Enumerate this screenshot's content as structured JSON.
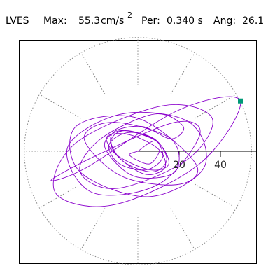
{
  "chart_data": {
    "type": "scatter",
    "plot_style": "polar particle-motion trace (continuous line)",
    "header": {
      "station": "LVES",
      "max_label": "Max:",
      "max_value": "55.3",
      "max_unit": "cm/s",
      "max_unit_exp": "2",
      "per_label": "Per:",
      "per_value": "0.340 s",
      "ang_label": "Ang:",
      "ang_value": "26.1"
    },
    "radial_axis": {
      "range": [
        0,
        55
      ],
      "tick_labels": [
        "20",
        "40"
      ],
      "ring_radius": 55,
      "ring_style": "dotted",
      "spokes_deg": [
        0,
        30,
        60,
        90,
        120,
        150,
        180,
        210,
        240,
        270,
        300,
        330
      ]
    },
    "peak": {
      "magnitude": 55.3,
      "angle_deg": 26.1,
      "marker_color": "#009977"
    },
    "colors": {
      "trace": "#8a00cc",
      "grid": "#888888",
      "axis": "#000000",
      "frame": "#000000"
    },
    "series": [
      {
        "x": [
          0.0,
          8.5,
          12.0,
          4.0,
          -9.0,
          -14.0,
          -5.0,
          8.0,
          14.0,
          7.0,
          -7.0,
          -13.0,
          -6.0,
          9.0,
          15.0,
          6.0,
          -10.0,
          -15.0,
          -4.0,
          10.0,
          13.0,
          3.0,
          -11.0,
          -12.0,
          2.0,
          16.0,
          22.0,
          8.0,
          -18.0,
          -28.0,
          -10.0,
          24.0,
          36.0,
          12.0,
          -30.0,
          -40.0,
          -12.0,
          30.0,
          49.6,
          20.0,
          -25.0,
          -42.0,
          -20.0,
          18.0,
          30.0,
          10.0,
          -22.0,
          -34.0,
          -8.0,
          25.0,
          32.0,
          5.0,
          -28.0,
          -30.0,
          0.0,
          28.0,
          20.0,
          -8.0,
          -26.0,
          -12.0,
          16.0,
          18.0,
          -2.0,
          -16.0,
          -8.0,
          10.0,
          6.0,
          -4.0,
          0.0
        ],
        "y": [
          0.0,
          5.0,
          -3.0,
          -9.0,
          -6.0,
          3.0,
          9.0,
          6.0,
          -4.0,
          -10.0,
          -5.0,
          5.0,
          10.0,
          5.0,
          -6.0,
          -9.0,
          -2.0,
          7.0,
          8.0,
          1.0,
          -8.0,
          -11.0,
          -1.0,
          9.0,
          12.0,
          6.0,
          12.0,
          18.0,
          6.0,
          -10.0,
          -18.0,
          -4.0,
          16.0,
          22.0,
          4.0,
          -20.0,
          -26.0,
          -6.0,
          24.4,
          20.0,
          -8.0,
          -14.0,
          -2.0,
          14.0,
          8.0,
          -16.0,
          -20.0,
          2.0,
          18.0,
          14.0,
          -8.0,
          -22.0,
          -10.0,
          12.0,
          16.0,
          -6.0,
          -16.0,
          -12.0,
          6.0,
          14.0,
          6.0,
          -10.0,
          -12.0,
          2.0,
          10.0,
          4.0,
          -6.0,
          -2.0,
          0.0
        ]
      }
    ]
  }
}
